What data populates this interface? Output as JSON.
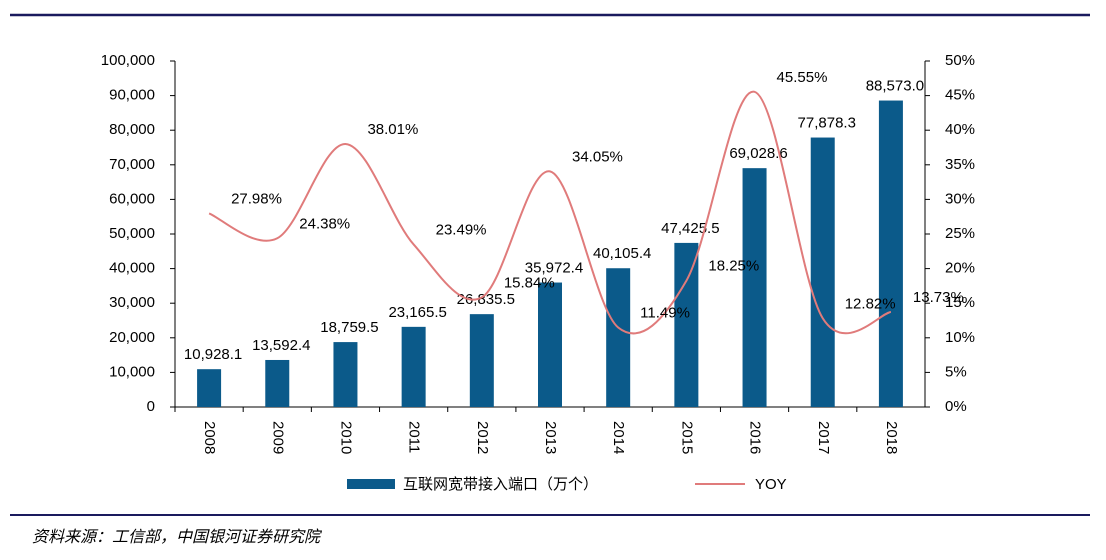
{
  "chart_data": {
    "type": "bar",
    "categories": [
      "2008",
      "2009",
      "2010",
      "2011",
      "2012",
      "2013",
      "2014",
      "2015",
      "2016",
      "2017",
      "2018"
    ],
    "series": [
      {
        "name": "互联网宽带接入端口（万个）",
        "color": "#0b5a8a",
        "type": "bar",
        "values": [
          10928.1,
          13592.4,
          18759.5,
          23165.5,
          26835.5,
          35972.4,
          40105.4,
          47425.5,
          69028.6,
          77878.3,
          88573.0
        ],
        "value_labels": [
          "10,928.1",
          "13,592.4",
          "18,759.5",
          "23,165.5",
          "26,835.5",
          "35,972.4",
          "40,105.4",
          "47,425.5",
          "69,028.6",
          "77,878.3",
          "88,573.0"
        ]
      },
      {
        "name": "YOY",
        "color": "#e07b7b",
        "type": "line",
        "axis": "y2",
        "values": [
          27.98,
          24.38,
          38.01,
          23.49,
          15.84,
          34.05,
          11.49,
          18.25,
          45.55,
          12.82,
          13.73
        ],
        "value_labels": [
          "27.98%",
          "24.38%",
          "38.01%",
          "23.49%",
          "15.84%",
          "34.05%",
          "11.49%",
          "18.25%",
          "45.55%",
          "12.82%",
          "13.73%"
        ]
      }
    ],
    "ylim": [
      0,
      100000
    ],
    "yticks": [
      0,
      {
        "value": 10000,
        "label": "10,000"
      },
      {
        "value": 20000,
        "label": "20,000"
      },
      {
        "value": 30000,
        "label": "30,000"
      },
      {
        "value": 40000,
        "label": "40,000"
      },
      {
        "value": 50000,
        "label": "50,000"
      },
      {
        "value": 60000,
        "label": "60,000"
      },
      {
        "value": 70000,
        "label": "70,000"
      },
      {
        "value": 80000,
        "label": "80,000"
      },
      {
        "value": 90000,
        "label": "90,000"
      },
      {
        "value": 100000,
        "label": "100,000"
      }
    ],
    "y2lim": [
      0,
      50
    ],
    "y2ticks": [
      {
        "value": 0,
        "label": "0%"
      },
      {
        "value": 5,
        "label": "5%"
      },
      {
        "value": 10,
        "label": "10%"
      },
      {
        "value": 15,
        "label": "15%"
      },
      {
        "value": 20,
        "label": "20%"
      },
      {
        "value": 25,
        "label": "25%"
      },
      {
        "value": 30,
        "label": "30%"
      },
      {
        "value": 35,
        "label": "35%"
      },
      {
        "value": 40,
        "label": "40%"
      },
      {
        "value": 45,
        "label": "45%"
      },
      {
        "value": 50,
        "label": "50%"
      }
    ],
    "grid": false,
    "source": "资料来源：工信部，中国银河证券研究院"
  }
}
